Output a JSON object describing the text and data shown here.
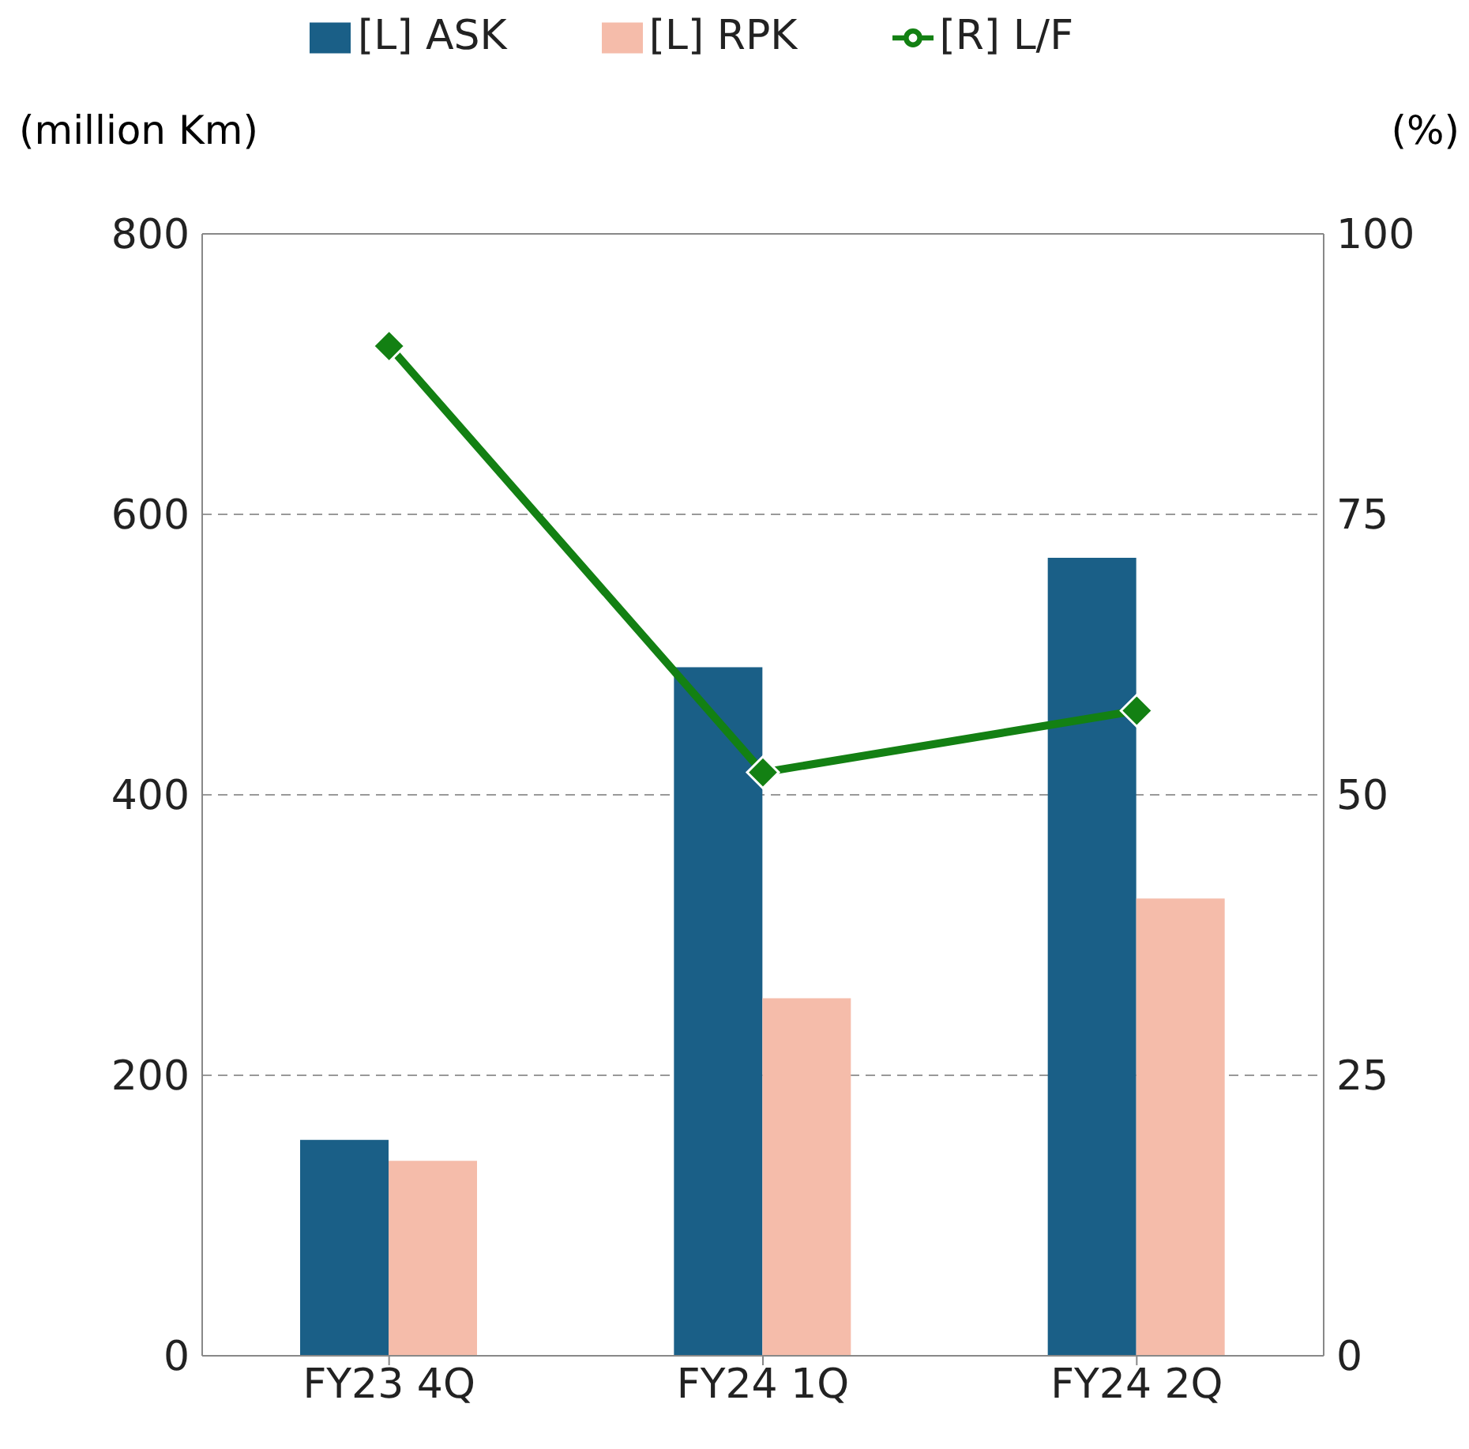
{
  "chart_data": {
    "type": "bar",
    "categories": [
      "FY23 4Q",
      "FY24 1Q",
      "FY24 2Q"
    ],
    "ylabel": "(million Km)",
    "y2label": "(%)",
    "series": [
      {
        "name": "[L] ASK",
        "color": "#1a5f87",
        "values": [
          154,
          491,
          569
        ]
      },
      {
        "name": "[L] RPK",
        "color": "#f5bcaa",
        "values": [
          139,
          255,
          326
        ]
      },
      {
        "name": "[R] L/F",
        "color": "#138013",
        "values": [
          90,
          52,
          57.5
        ],
        "type": "line",
        "axis": "y2",
        "marker": "diamond",
        "line_style": "solid"
      }
    ],
    "ylim": [
      0,
      800
    ],
    "yticks": [
      0,
      200,
      400,
      600,
      800
    ],
    "y2lim": [
      0,
      100
    ],
    "y2ticks": [
      0,
      25,
      50,
      75,
      100
    ],
    "grid": "y",
    "legend": "top"
  }
}
